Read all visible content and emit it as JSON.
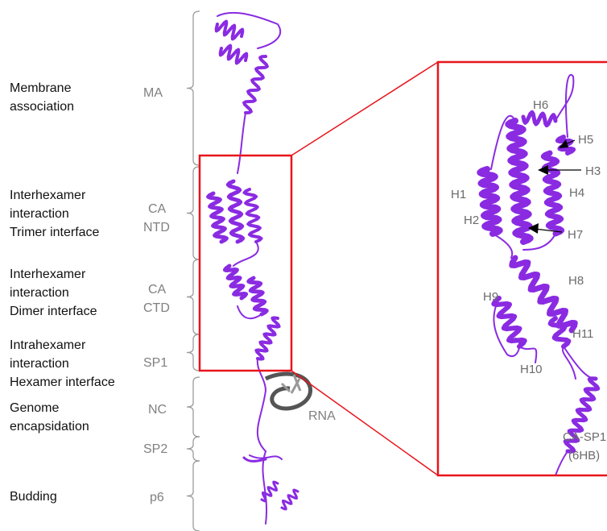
{
  "functions": [
    [
      "Membrane",
      "association"
    ],
    [
      "Interhexamer",
      "interaction",
      "Trimer interface"
    ],
    [
      "Interhexamer",
      "interaction",
      "Dimer interface"
    ],
    [
      "Intrahexamer",
      "interaction",
      "Hexamer interface"
    ],
    [
      "Genome",
      "encapsidation"
    ],
    [
      "Budding"
    ]
  ],
  "domains": [
    [
      "MA"
    ],
    [
      "CA",
      "NTD"
    ],
    [
      "CA",
      "CTD"
    ],
    [
      "SP1"
    ],
    [
      "NC"
    ],
    [
      "SP2"
    ],
    [
      "p6"
    ]
  ],
  "rna_label": "RNA",
  "helices": [
    "H1",
    "H2",
    "H3",
    "H4",
    "H5",
    "H6",
    "H7",
    "H8",
    "H9",
    "H10",
    "H11"
  ],
  "ca_sp1_label": [
    "CA-SP1",
    "(6HB)"
  ]
}
